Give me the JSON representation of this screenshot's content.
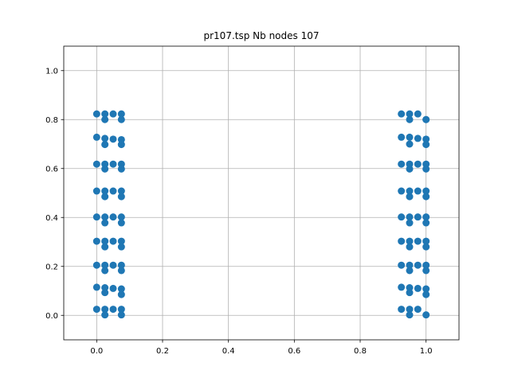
{
  "chart_data": {
    "type": "scatter",
    "title": "pr107.tsp Nb nodes 107",
    "xlabel": "",
    "ylabel": "",
    "xlim": [
      -0.1,
      1.1
    ],
    "ylim": [
      -0.1,
      1.1
    ],
    "x_ticks": [
      0.0,
      0.2,
      0.4,
      0.6,
      0.8,
      1.0
    ],
    "x_tick_labels": [
      "0.0",
      "0.2",
      "0.4",
      "0.6",
      "0.8",
      "1.0"
    ],
    "y_ticks": [
      0.0,
      0.2,
      0.4,
      0.6,
      0.8,
      1.0
    ],
    "y_tick_labels": [
      "0.0",
      "0.2",
      "0.4",
      "0.6",
      "0.8",
      "1.0"
    ],
    "grid": true,
    "marker_color": "#1f77b4",
    "series": [
      {
        "x": [
          0.0,
          0.025,
          0.05,
          0.075,
          0.025,
          0.075,
          0.0,
          0.025,
          0.05,
          0.075,
          0.025,
          0.075,
          0.0,
          0.025,
          0.05,
          0.075,
          0.025,
          0.075,
          0.0,
          0.025,
          0.05,
          0.075,
          0.025,
          0.075,
          0.0,
          0.025,
          0.05,
          0.075,
          0.025,
          0.075,
          0.0,
          0.025,
          0.05,
          0.075,
          0.025,
          0.075,
          0.0,
          0.025,
          0.05,
          0.075,
          0.025,
          0.075,
          0.0,
          0.025,
          0.05,
          0.075,
          0.025,
          0.075,
          0.0,
          0.025,
          0.05,
          0.075,
          0.025,
          0.075,
          0.925,
          0.95,
          0.975,
          1.0,
          0.95,
          1.0,
          0.925,
          0.95,
          0.975,
          1.0,
          0.95,
          1.0,
          0.925,
          0.95,
          0.975,
          1.0,
          0.95,
          1.0,
          0.925,
          0.95,
          0.975,
          1.0,
          0.95,
          1.0,
          0.925,
          0.95,
          0.975,
          1.0,
          0.95,
          1.0,
          0.925,
          0.95,
          0.975,
          1.0,
          0.95,
          1.0,
          0.925,
          0.95,
          0.975,
          1.0,
          0.95,
          1.0,
          0.925,
          0.95,
          0.975,
          1.0,
          0.95,
          1.0,
          0.925,
          0.95,
          0.975,
          0.95,
          1.0
        ],
        "y": [
          0.823,
          0.823,
          0.823,
          0.823,
          0.8,
          0.8,
          0.728,
          0.723,
          0.72,
          0.718,
          0.698,
          0.698,
          0.618,
          0.618,
          0.618,
          0.618,
          0.598,
          0.598,
          0.508,
          0.508,
          0.508,
          0.508,
          0.485,
          0.485,
          0.402,
          0.402,
          0.402,
          0.402,
          0.378,
          0.378,
          0.303,
          0.303,
          0.303,
          0.303,
          0.28,
          0.28,
          0.205,
          0.205,
          0.205,
          0.205,
          0.183,
          0.183,
          0.115,
          0.113,
          0.11,
          0.108,
          0.093,
          0.085,
          0.025,
          0.025,
          0.025,
          0.025,
          0.002,
          0.002,
          0.823,
          0.823,
          0.823,
          0.8,
          0.8,
          0.8,
          0.728,
          0.728,
          0.723,
          0.72,
          0.7,
          0.698,
          0.618,
          0.618,
          0.618,
          0.618,
          0.598,
          0.598,
          0.508,
          0.508,
          0.508,
          0.508,
          0.485,
          0.485,
          0.402,
          0.402,
          0.402,
          0.402,
          0.378,
          0.378,
          0.303,
          0.303,
          0.303,
          0.303,
          0.28,
          0.28,
          0.205,
          0.205,
          0.205,
          0.205,
          0.183,
          0.183,
          0.115,
          0.113,
          0.11,
          0.108,
          0.093,
          0.085,
          0.025,
          0.025,
          0.025,
          0.002,
          0.002
        ]
      }
    ]
  }
}
